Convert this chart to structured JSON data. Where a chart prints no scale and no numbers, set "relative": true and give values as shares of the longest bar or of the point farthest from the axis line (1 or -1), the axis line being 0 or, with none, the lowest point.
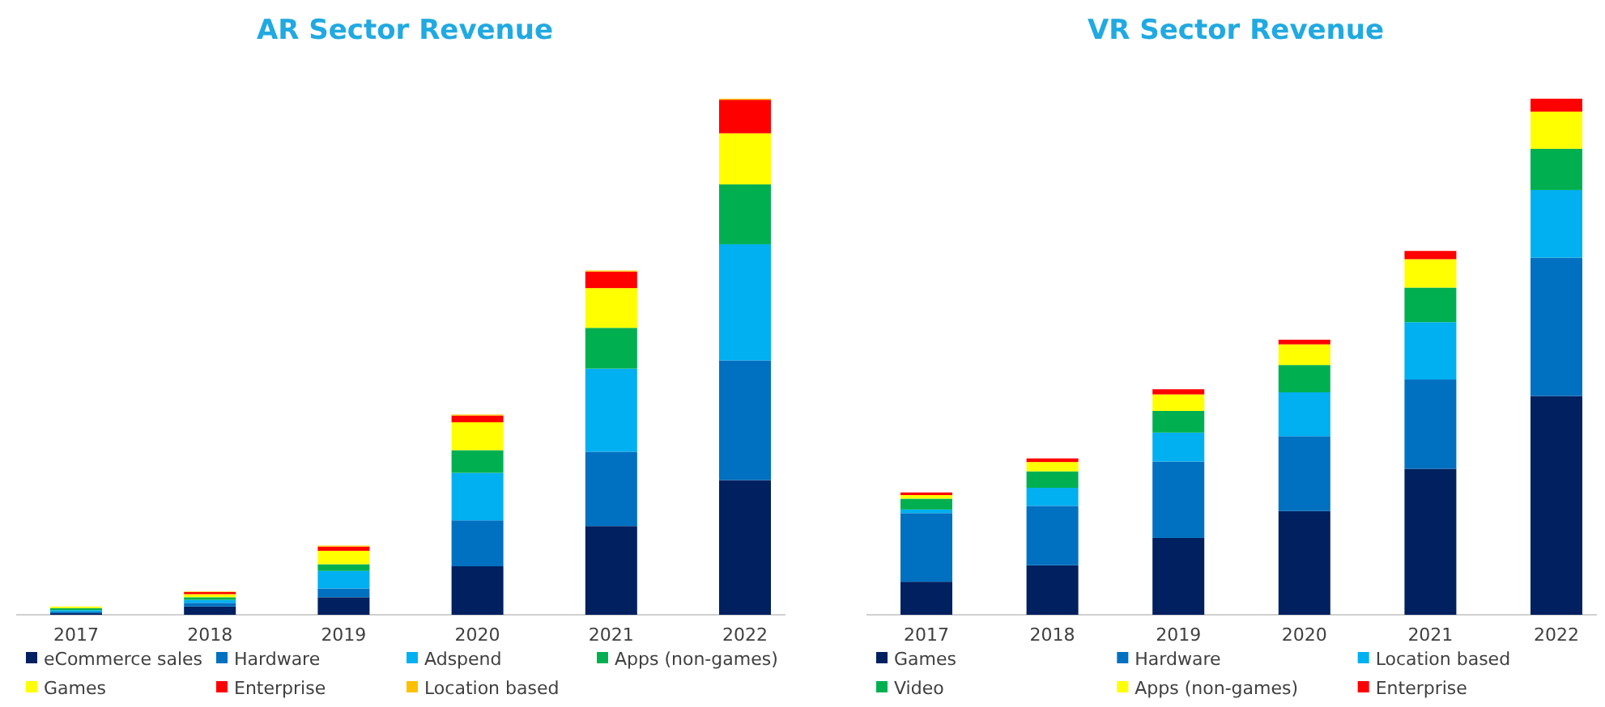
{
  "chart_data": [
    {
      "type": "bar",
      "title": "AR Sector Revenue",
      "stacked": true,
      "relative": true,
      "legend": "bottom",
      "categories": [
        "2017",
        "2018",
        "2019",
        "2020",
        "2021",
        "2022"
      ],
      "series": [
        {
          "name": "eCommerce sales",
          "color": "#002060",
          "values": [
            0.003,
            0.016,
            0.034,
            0.094,
            0.172,
            0.261
          ]
        },
        {
          "name": "Hardware",
          "color": "#0070c0",
          "values": [
            0.003,
            0.007,
            0.017,
            0.089,
            0.144,
            0.232
          ]
        },
        {
          "name": "Adspend",
          "color": "#00b0f0",
          "values": [
            0.003,
            0.006,
            0.034,
            0.092,
            0.161,
            0.225
          ]
        },
        {
          "name": "Apps (non-games)",
          "color": "#00b050",
          "values": [
            0.004,
            0.005,
            0.013,
            0.044,
            0.079,
            0.116
          ]
        },
        {
          "name": "Games",
          "color": "#ffff00",
          "values": [
            0.003,
            0.006,
            0.026,
            0.054,
            0.077,
            0.099
          ]
        },
        {
          "name": "Enterprise",
          "color": "#ff0000",
          "values": [
            0,
            0.004,
            0.008,
            0.013,
            0.032,
            0.065
          ]
        },
        {
          "name": "Location based",
          "color": "#ffc000",
          "values": [
            0,
            0.001,
            0.002,
            0.002,
            0.002,
            0.002
          ]
        }
      ]
    },
    {
      "type": "bar",
      "title": "VR Sector Revenue",
      "stacked": true,
      "relative": true,
      "legend": "bottom",
      "categories": [
        "2017",
        "2018",
        "2019",
        "2020",
        "2021",
        "2022"
      ],
      "series": [
        {
          "name": "Games",
          "color": "#002060",
          "values": [
            0.064,
            0.096,
            0.149,
            0.201,
            0.283,
            0.424
          ]
        },
        {
          "name": "Hardware",
          "color": "#0070c0",
          "values": [
            0.133,
            0.115,
            0.148,
            0.145,
            0.173,
            0.268
          ]
        },
        {
          "name": "Location based",
          "color": "#00b0f0",
          "values": [
            0.007,
            0.035,
            0.056,
            0.085,
            0.111,
            0.131
          ]
        },
        {
          "name": "Video",
          "color": "#00b050",
          "values": [
            0.021,
            0.032,
            0.042,
            0.053,
            0.067,
            0.08
          ]
        },
        {
          "name": "Apps (non-games)",
          "color": "#ffff00",
          "values": [
            0.007,
            0.018,
            0.032,
            0.04,
            0.055,
            0.072
          ]
        },
        {
          "name": "Enterprise",
          "color": "#ff0000",
          "values": [
            0.005,
            0.007,
            0.01,
            0.009,
            0.016,
            0.025
          ]
        }
      ]
    }
  ]
}
